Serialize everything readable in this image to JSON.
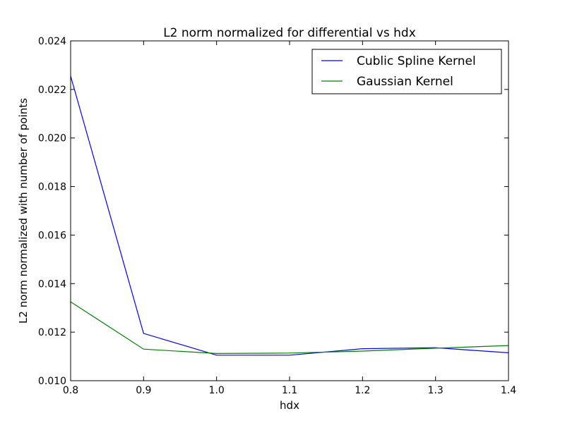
{
  "chart_data": {
    "type": "line",
    "title": "L2 norm normalized for differential vs hdx",
    "xlabel": "hdx",
    "ylabel": "L2 norm normalized with number of points",
    "xlim": [
      0.8,
      1.4
    ],
    "ylim": [
      0.01,
      0.024
    ],
    "x": [
      0.8,
      0.9,
      1.0,
      1.1,
      1.2,
      1.3,
      1.4
    ],
    "x_ticks": [
      "0.8",
      "0.9",
      "1.0",
      "1.1",
      "1.2",
      "1.3",
      "1.4"
    ],
    "y_ticks": [
      "0.010",
      "0.012",
      "0.014",
      "0.016",
      "0.018",
      "0.020",
      "0.022",
      "0.024"
    ],
    "grid": false,
    "legend_position": "top-right",
    "series": [
      {
        "name": "Cublic Spline Kernel",
        "color": "#0000ff",
        "values": [
          0.02255,
          0.01195,
          0.01105,
          0.01105,
          0.01132,
          0.01136,
          0.01115
        ]
      },
      {
        "name": "Gaussian Kernel",
        "color": "#008000",
        "values": [
          0.01325,
          0.0113,
          0.01112,
          0.01114,
          0.01122,
          0.01134,
          0.01145
        ]
      }
    ]
  }
}
